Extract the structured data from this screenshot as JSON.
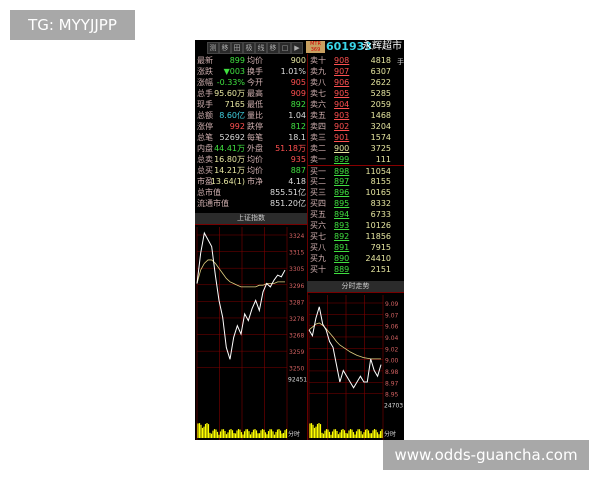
{
  "overlay": {
    "tag": "TG: MYYJJPP",
    "site": "www.odds-guancha.com"
  },
  "toolbar": {
    "buttons": [
      "测",
      "移",
      "田",
      "极",
      "线",
      "移",
      "□",
      "▶"
    ],
    "badge": "MTR 369",
    "code": "601933",
    "name": "永辉超市",
    "unit": "手"
  },
  "quote": [
    {
      "l1": "最新",
      "v1": "899",
      "c1": "grn",
      "l2": "均价",
      "v2": "900",
      "c2": "yel"
    },
    {
      "l1": "涨跌",
      "v1": "▼003",
      "c1": "grn",
      "l2": "换手",
      "v2": "1.01%",
      "c2": "wht"
    },
    {
      "l1": "涨幅",
      "v1": "-0.33%",
      "c1": "grn",
      "l2": "今开",
      "v2": "905",
      "c2": "red"
    },
    {
      "l1": "总手",
      "v1": "95.60万",
      "c1": "yel",
      "l2": "最高",
      "v2": "909",
      "c2": "red"
    },
    {
      "l1": "现手",
      "v1": "7165",
      "c1": "yel",
      "l2": "最低",
      "v2": "892",
      "c2": "grn"
    },
    {
      "l1": "总额",
      "v1": "8.60亿",
      "c1": "cyn",
      "l2": "量比",
      "v2": "1.04",
      "c2": "wht"
    },
    {
      "l1": "涨停",
      "v1": "992",
      "c1": "red",
      "l2": "跌停",
      "v2": "812",
      "c2": "grn"
    },
    {
      "l1": "总笔",
      "v1": "52692",
      "c1": "wht",
      "l2": "每笔",
      "v2": "18.1",
      "c2": "wht"
    },
    {
      "l1": "内盘",
      "v1": "44.41万",
      "c1": "grn",
      "l2": "外盘",
      "v2": "51.18万",
      "c2": "red"
    },
    {
      "l1": "总卖",
      "v1": "16.80万",
      "c1": "yel",
      "l2": "均价",
      "v2": "935",
      "c2": "red"
    },
    {
      "l1": "总买",
      "v1": "14.21万",
      "c1": "yel",
      "l2": "均价",
      "v2": "887",
      "c2": "grn"
    },
    {
      "l1": "市盈",
      "v1": "13.64(1)",
      "c1": "yel",
      "l2": "市净",
      "v2": "4.18",
      "c2": "wht"
    },
    {
      "l1": "总市值",
      "v1": "",
      "c1": "wht",
      "l2": "",
      "v2": "855.51亿",
      "c2": "wht"
    },
    {
      "l1": "流通市值",
      "v1": "",
      "c1": "wht",
      "l2": "",
      "v2": "851.20亿",
      "c2": "wht"
    }
  ],
  "orderbook": [
    {
      "l": "卖十",
      "p": "908",
      "v": "4818",
      "c": "red"
    },
    {
      "l": "卖九",
      "p": "907",
      "v": "6307",
      "c": "red"
    },
    {
      "l": "卖八",
      "p": "906",
      "v": "2622",
      "c": "red"
    },
    {
      "l": "卖七",
      "p": "905",
      "v": "5285",
      "c": "red"
    },
    {
      "l": "卖六",
      "p": "904",
      "v": "2059",
      "c": "red"
    },
    {
      "l": "卖五",
      "p": "903",
      "v": "1468",
      "c": "red"
    },
    {
      "l": "卖四",
      "p": "902",
      "v": "3204",
      "c": "red"
    },
    {
      "l": "卖三",
      "p": "901",
      "v": "1574",
      "c": "red"
    },
    {
      "l": "卖二",
      "p": "900",
      "v": "3725",
      "c": "yel"
    },
    {
      "l": "卖一",
      "p": "899",
      "v": "111",
      "c": "grn"
    },
    {
      "l": "买一",
      "p": "898",
      "v": "11054",
      "c": "grn"
    },
    {
      "l": "买二",
      "p": "897",
      "v": "8155",
      "c": "grn"
    },
    {
      "l": "买三",
      "p": "896",
      "v": "10165",
      "c": "grn"
    },
    {
      "l": "买四",
      "p": "895",
      "v": "8332",
      "c": "grn"
    },
    {
      "l": "买五",
      "p": "894",
      "v": "6733",
      "c": "grn"
    },
    {
      "l": "买六",
      "p": "893",
      "v": "10126",
      "c": "grn"
    },
    {
      "l": "买七",
      "p": "892",
      "v": "11856",
      "c": "grn"
    },
    {
      "l": "买八",
      "p": "891",
      "v": "7915",
      "c": "grn"
    },
    {
      "l": "买九",
      "p": "890",
      "v": "24410",
      "c": "grn"
    },
    {
      "l": "买十",
      "p": "889",
      "v": "2151",
      "c": "grn"
    }
  ],
  "index_chart": {
    "title": "上证指数",
    "ticks": [
      "3324",
      "3315",
      "3305",
      "3296",
      "3287",
      "3278",
      "3268",
      "3259",
      "3250"
    ],
    "vol_label": "92451",
    "time_label": "分时",
    "price": [
      3300,
      3318,
      3330,
      3326,
      3322,
      3305,
      3290,
      3280,
      3262,
      3255,
      3268,
      3275,
      3270,
      3282,
      3278,
      3285,
      3290,
      3284,
      3295,
      3300,
      3298,
      3302,
      3305,
      3304,
      3308
    ],
    "avg": [
      3300,
      3308,
      3312,
      3314,
      3314,
      3312,
      3309,
      3306,
      3303,
      3301,
      3300,
      3299,
      3298,
      3298,
      3298,
      3298,
      3298,
      3299,
      3299,
      3300,
      3300,
      3300,
      3301,
      3301,
      3301
    ],
    "range": [
      3250,
      3330
    ]
  },
  "stock_chart": {
    "title": "分时走势",
    "ticks": [
      "9.09",
      "9.07",
      "9.06",
      "9.04",
      "9.02",
      "9.00",
      "8.98",
      "8.97",
      "8.95"
    ],
    "vol_label": "24703",
    "time_label": "分时",
    "price": [
      9.05,
      9.04,
      9.07,
      9.09,
      9.06,
      9.05,
      9.03,
      9.02,
      8.99,
      8.96,
      8.98,
      8.97,
      8.96,
      8.95,
      8.96,
      8.97,
      8.96,
      8.96,
      9.0,
      8.98,
      8.97,
      8.99
    ],
    "avg": [
      9.05,
      9.055,
      9.06,
      9.062,
      9.058,
      9.052,
      9.045,
      9.038,
      9.03,
      9.024,
      9.02,
      9.016,
      9.012,
      9.009,
      9.006,
      9.004,
      9.002,
      9.001,
      9.0,
      9.0,
      9.0,
      9.0
    ],
    "range": [
      8.94,
      9.1
    ]
  },
  "colors": {
    "up": "#ff5050",
    "down": "#40e040",
    "avg": "#e0d080",
    "price": "#ffffff",
    "volume": "#ffff00",
    "grid": "#800000"
  }
}
